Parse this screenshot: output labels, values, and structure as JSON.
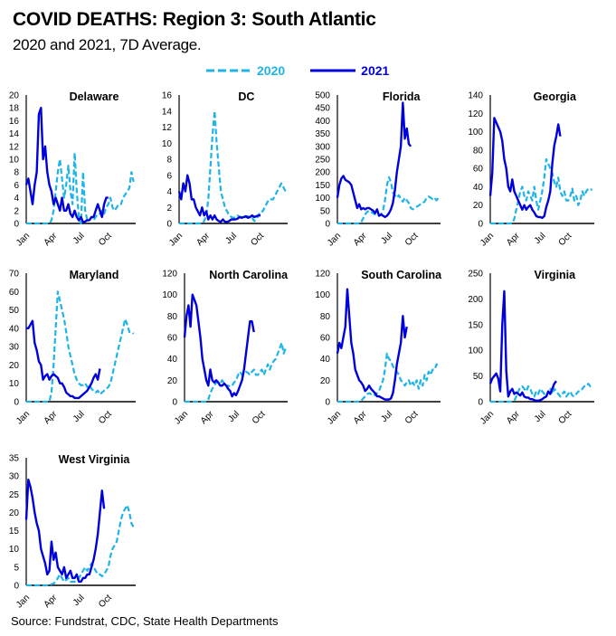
{
  "title": "COVID DEATHS: Region 3: South Atlantic",
  "subtitle": "2020 and 2021, 7D Average.",
  "source": "Source: Fundstrat, CDC, State Health Departments",
  "colors": {
    "s2020": "#1fb4e8",
    "s2021": "#0000dd"
  },
  "legend": [
    {
      "label": "2020",
      "style": "dashed",
      "color": "#1fb4e8"
    },
    {
      "label": "2021",
      "style": "solid",
      "color": "#0000dd"
    }
  ],
  "chart_data": [
    {
      "type": "line",
      "title": "Delaware",
      "ylim": [
        0,
        20
      ],
      "yticks": [
        0,
        2,
        4,
        6,
        8,
        10,
        12,
        14,
        16,
        18,
        20
      ],
      "xlabels": [
        "Jan",
        "Apr",
        "Jul",
        "Oct"
      ],
      "series": [
        {
          "name": "2020",
          "values": [
            0,
            0,
            0,
            0,
            0,
            0,
            0,
            0,
            0,
            0,
            0,
            0,
            0.5,
            2,
            5,
            8,
            10,
            7,
            4,
            6,
            9,
            5,
            3,
            11,
            5,
            1,
            0,
            8,
            2,
            0.5,
            0.5,
            1,
            0.5,
            1,
            1.5,
            1.5,
            2,
            1.5,
            2.5,
            3,
            4,
            2.5,
            2,
            2.5,
            3,
            3,
            4,
            4.5,
            5,
            5.5,
            8,
            6.5
          ]
        },
        {
          "name": "2021",
          "values": [
            6,
            7,
            5,
            3,
            6,
            8,
            17,
            18,
            10,
            12,
            8,
            6,
            5,
            3,
            4,
            3,
            2,
            4,
            2,
            2,
            3,
            1.5,
            1,
            2,
            1,
            0.5,
            1,
            0.2,
            0.3,
            0.5,
            0.5,
            1,
            1,
            2,
            3,
            2,
            1,
            3,
            4,
            4
          ]
        }
      ]
    },
    {
      "type": "line",
      "title": "DC",
      "ylim": [
        0,
        16
      ],
      "yticks": [
        0,
        2,
        4,
        6,
        8,
        10,
        12,
        14,
        16
      ],
      "xlabels": [
        "Jan",
        "Apr",
        "Jul",
        "Oct"
      ],
      "series": [
        {
          "name": "2020",
          "values": [
            0,
            0,
            0,
            0,
            0,
            0,
            0,
            0,
            0,
            0,
            0,
            0,
            0.3,
            1,
            3,
            7,
            11,
            14,
            10,
            7,
            4,
            3,
            2,
            1.5,
            1,
            0.8,
            0.7,
            0.8,
            1,
            0.8,
            0.8,
            0.7,
            0.8,
            0.9,
            0.8,
            0.7,
            0.3,
            0.5,
            1,
            1.5,
            1.5,
            2,
            2.5,
            3,
            3,
            3,
            3.5,
            4,
            4.5,
            5,
            4.5,
            4
          ]
        },
        {
          "name": "2021",
          "values": [
            4,
            3,
            5,
            4,
            6,
            5,
            3,
            3,
            2,
            1.5,
            1,
            2,
            1,
            1.5,
            0.5,
            1,
            0.5,
            1,
            0.5,
            0.3,
            0.2,
            0.5,
            0.2,
            0.2,
            0.3,
            0.5,
            0.5,
            0.5,
            0.6,
            0.8,
            0.7,
            0.8,
            0.9,
            0.7,
            0.8,
            1,
            0.8,
            0.9,
            1,
            1
          ]
        }
      ]
    },
    {
      "type": "line",
      "title": "Florida",
      "ylim": [
        0,
        500
      ],
      "yticks": [
        0,
        50,
        100,
        150,
        200,
        250,
        300,
        350,
        400,
        450,
        500
      ],
      "xlabels": [
        "Jan",
        "Apr",
        "Jul",
        "Oct"
      ],
      "series": [
        {
          "name": "2020",
          "values": [
            0,
            0,
            0,
            0,
            0,
            0,
            0,
            0,
            0,
            0,
            0,
            0,
            5,
            20,
            35,
            45,
            50,
            45,
            40,
            35,
            35,
            30,
            35,
            50,
            90,
            150,
            180,
            160,
            120,
            110,
            100,
            110,
            95,
            85,
            100,
            90,
            80,
            60,
            55,
            60,
            65,
            70,
            75,
            80,
            85,
            100,
            105,
            100,
            95,
            100,
            90,
            100
          ]
        },
        {
          "name": "2021",
          "values": [
            100,
            150,
            175,
            185,
            170,
            165,
            160,
            150,
            120,
            90,
            60,
            75,
            55,
            60,
            55,
            60,
            60,
            55,
            50,
            40,
            55,
            30,
            35,
            30,
            25,
            30,
            40,
            55,
            80,
            130,
            200,
            250,
            300,
            470,
            330,
            370,
            310,
            300
          ]
        }
      ]
    },
    {
      "type": "line",
      "title": "Georgia",
      "ylim": [
        0,
        140
      ],
      "yticks": [
        0,
        20,
        40,
        60,
        80,
        100,
        120,
        140
      ],
      "xlabels": [
        "Jan",
        "Apr",
        "Jul",
        "Oct"
      ],
      "series": [
        {
          "name": "2020",
          "values": [
            0,
            0,
            0,
            0,
            0,
            0,
            0,
            0,
            0,
            0,
            0,
            0,
            5,
            15,
            25,
            35,
            40,
            30,
            25,
            35,
            30,
            25,
            40,
            25,
            15,
            25,
            35,
            50,
            70,
            65,
            60,
            55,
            45,
            40,
            50,
            35,
            30,
            35,
            25,
            25,
            30,
            38,
            25,
            30,
            20,
            25,
            35,
            30,
            35,
            38,
            37,
            37
          ]
        },
        {
          "name": "2021",
          "values": [
            30,
            55,
            115,
            110,
            105,
            100,
            90,
            70,
            60,
            40,
            35,
            48,
            35,
            30,
            25,
            20,
            15,
            20,
            15,
            18,
            20,
            15,
            12,
            8,
            7,
            7,
            6,
            8,
            18,
            25,
            35,
            65,
            85,
            95,
            108,
            95
          ]
        }
      ]
    },
    {
      "type": "line",
      "title": "Maryland",
      "ylim": [
        0,
        70
      ],
      "yticks": [
        0,
        10,
        20,
        30,
        40,
        50,
        60,
        70
      ],
      "xlabels": [
        "Jan",
        "Apr",
        "Jul",
        "Oct"
      ],
      "series": [
        {
          "name": "2020",
          "values": [
            0,
            0,
            0,
            0,
            0,
            0,
            0,
            0,
            0,
            0,
            0,
            0,
            5,
            20,
            40,
            60,
            55,
            50,
            45,
            38,
            30,
            25,
            20,
            15,
            12,
            10,
            9,
            9,
            10,
            8,
            9,
            7,
            6,
            5,
            6,
            4,
            5,
            6,
            7,
            8,
            10,
            15,
            20,
            25,
            30,
            35,
            40,
            45,
            42,
            38,
            38,
            37
          ]
        },
        {
          "name": "2021",
          "values": [
            40,
            40,
            42,
            44,
            32,
            28,
            22,
            20,
            12,
            14,
            15,
            12,
            14,
            15,
            14,
            13,
            10,
            10,
            8,
            5,
            4,
            3,
            3,
            2,
            2,
            2,
            3,
            4,
            5,
            6,
            8,
            10,
            13,
            15,
            12,
            18
          ]
        }
      ]
    },
    {
      "type": "line",
      "title": "North Carolina",
      "ylim": [
        0,
        120
      ],
      "yticks": [
        0,
        20,
        40,
        60,
        80,
        100,
        120
      ],
      "xlabels": [
        "Jan",
        "Apr",
        "Jul",
        "Oct"
      ],
      "series": [
        {
          "name": "2020",
          "values": [
            0,
            0,
            0,
            0,
            0,
            0,
            0,
            0,
            0,
            0,
            0,
            0,
            2,
            8,
            12,
            15,
            18,
            18,
            17,
            20,
            17,
            15,
            15,
            14,
            15,
            18,
            20,
            25,
            28,
            25,
            27,
            28,
            27,
            25,
            28,
            30,
            25,
            25,
            28,
            30,
            25,
            30,
            35,
            30,
            35,
            38,
            40,
            45,
            50,
            55,
            45,
            50
          ]
        },
        {
          "name": "2021",
          "values": [
            60,
            80,
            90,
            70,
            100,
            95,
            90,
            75,
            60,
            40,
            30,
            20,
            15,
            30,
            20,
            18,
            20,
            18,
            15,
            15,
            17,
            15,
            12,
            10,
            5,
            8,
            6,
            10,
            15,
            20,
            30,
            45,
            60,
            75,
            75,
            65
          ]
        }
      ]
    },
    {
      "type": "line",
      "title": "South Carolina",
      "ylim": [
        0,
        120
      ],
      "yticks": [
        0,
        20,
        40,
        60,
        80,
        100,
        120
      ],
      "xlabels": [
        "Jan",
        "Apr",
        "Jul",
        "Oct"
      ],
      "series": [
        {
          "name": "2020",
          "values": [
            0,
            0,
            0,
            0,
            0,
            0,
            0,
            0,
            0,
            0,
            0,
            0,
            1,
            3,
            5,
            7,
            8,
            7,
            8,
            6,
            8,
            10,
            15,
            20,
            30,
            45,
            40,
            38,
            33,
            30,
            28,
            25,
            20,
            18,
            15,
            18,
            20,
            15,
            18,
            15,
            20,
            12,
            20,
            15,
            25,
            20,
            28,
            25,
            30,
            30,
            35,
            32
          ]
        },
        {
          "name": "2021",
          "values": [
            45,
            55,
            50,
            60,
            70,
            105,
            80,
            55,
            45,
            30,
            25,
            20,
            18,
            15,
            10,
            12,
            15,
            12,
            10,
            8,
            5,
            5,
            4,
            3,
            2,
            2,
            2,
            3,
            8,
            20,
            35,
            45,
            55,
            80,
            60,
            70
          ]
        }
      ]
    },
    {
      "type": "line",
      "title": "Virginia",
      "ylim": [
        0,
        250
      ],
      "yticks": [
        0,
        50,
        100,
        150,
        200,
        250
      ],
      "xlabels": [
        "Jan",
        "Apr",
        "Jul",
        "Oct"
      ],
      "series": [
        {
          "name": "2020",
          "values": [
            0,
            0,
            0,
            0,
            0,
            0,
            0,
            0,
            0,
            0,
            0,
            0,
            2,
            10,
            20,
            28,
            30,
            25,
            20,
            30,
            25,
            15,
            10,
            20,
            15,
            25,
            20,
            15,
            10,
            20,
            25,
            15,
            25,
            20,
            15,
            10,
            15,
            20,
            10,
            15,
            20,
            12,
            10,
            15,
            20,
            20,
            25,
            30,
            30,
            35,
            30,
            32
          ]
        },
        {
          "name": "2021",
          "values": [
            35,
            45,
            50,
            55,
            45,
            20,
            150,
            215,
            60,
            10,
            20,
            25,
            15,
            18,
            15,
            12,
            18,
            10,
            8,
            8,
            5,
            5,
            3,
            2,
            2,
            3,
            5,
            8,
            10,
            20,
            15,
            25,
            35,
            40
          ]
        }
      ]
    },
    {
      "type": "line",
      "title": "West Virginia",
      "ylim": [
        0,
        35
      ],
      "yticks": [
        0,
        5,
        10,
        15,
        20,
        25,
        30,
        35
      ],
      "xlabels": [
        "Jan",
        "Apr",
        "Jul",
        "Oct"
      ],
      "series": [
        {
          "name": "2020",
          "values": [
            0,
            0,
            0,
            0,
            0,
            0,
            0,
            0,
            0,
            0,
            0,
            0,
            0.3,
            0.5,
            1,
            2,
            3,
            2,
            1,
            1.5,
            2,
            1,
            1,
            1,
            1.5,
            2,
            3,
            4,
            5,
            4,
            5,
            6,
            5,
            4,
            3,
            3,
            2.5,
            3,
            4,
            5,
            8,
            10,
            11,
            12,
            15,
            18,
            20,
            21,
            22,
            20,
            17,
            16
          ]
        },
        {
          "name": "2021",
          "values": [
            18,
            29,
            27,
            24,
            20,
            17,
            15,
            10,
            8,
            6,
            3,
            4,
            12,
            7,
            9,
            5,
            4,
            3,
            5,
            2,
            3,
            4,
            2,
            2,
            3,
            1,
            1,
            2,
            2,
            3,
            3,
            5,
            7,
            10,
            14,
            20,
            26,
            21
          ]
        }
      ]
    }
  ]
}
